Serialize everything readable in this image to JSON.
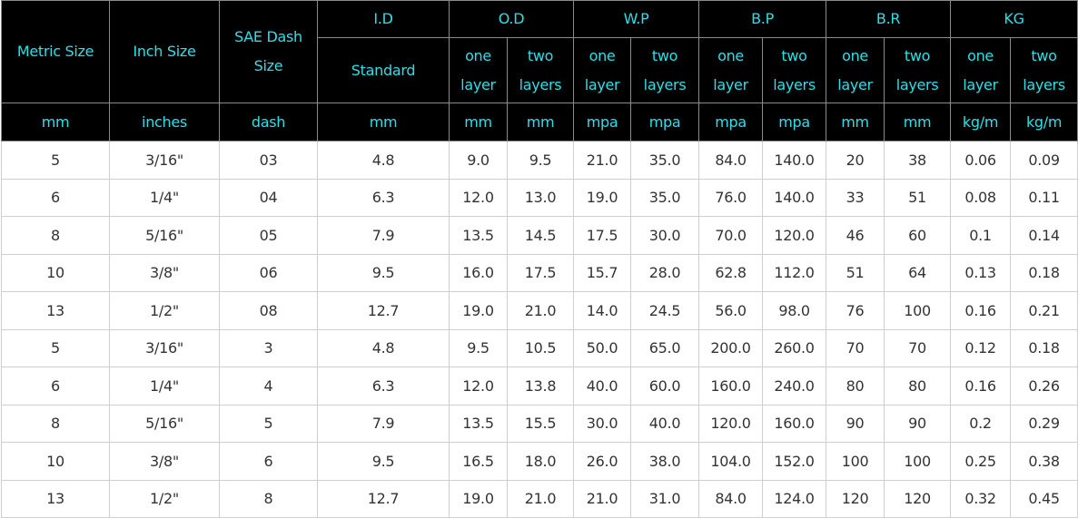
{
  "header": {
    "row1": [
      "Metric Size",
      "Inch Size",
      "SAE Dash Size",
      "I.D",
      "O.D",
      "W.P",
      "B.P",
      "B.R",
      "KG"
    ],
    "row2": [
      "Standard",
      "one layer",
      "two layers",
      "one layer",
      "two layers",
      "one layer",
      "two layers",
      "one layer",
      "two layers",
      "one layer",
      "two layers"
    ],
    "units": [
      "mm",
      "inches",
      "dash",
      "mm",
      "mm",
      "mm",
      "mpa",
      "mpa",
      "mpa",
      "mpa",
      "mm",
      "mm",
      "kg/m",
      "kg/m"
    ]
  },
  "table": {
    "rows": [
      [
        "5",
        "3/16\"",
        "03",
        "4.8",
        "9.0",
        "9.5",
        "21.0",
        "35.0",
        "84.0",
        "140.0",
        "20",
        "38",
        "0.06",
        "0.09"
      ],
      [
        "6",
        "1/4\"",
        "04",
        "6.3",
        "12.0",
        "13.0",
        "19.0",
        "35.0",
        "76.0",
        "140.0",
        "33",
        "51",
        "0.08",
        "0.11"
      ],
      [
        "8",
        "5/16\"",
        "05",
        "7.9",
        "13.5",
        "14.5",
        "17.5",
        "30.0",
        "70.0",
        "120.0",
        "46",
        "60",
        "0.1",
        "0.14"
      ],
      [
        "10",
        "3/8\"",
        "06",
        "9.5",
        "16.0",
        "17.5",
        "15.7",
        "28.0",
        "62.8",
        "112.0",
        "51",
        "64",
        "0.13",
        "0.18"
      ],
      [
        "13",
        "1/2\"",
        "08",
        "12.7",
        "19.0",
        "21.0",
        "14.0",
        "24.5",
        "56.0",
        "98.0",
        "76",
        "100",
        "0.16",
        "0.21"
      ],
      [
        "5",
        "3/16\"",
        "3",
        "4.8",
        "9.5",
        "10.5",
        "50.0",
        "65.0",
        "200.0",
        "260.0",
        "70",
        "70",
        "0.12",
        "0.18"
      ],
      [
        "6",
        "1/4\"",
        "4",
        "6.3",
        "12.0",
        "13.8",
        "40.0",
        "60.0",
        "160.0",
        "240.0",
        "80",
        "80",
        "0.16",
        "0.26"
      ],
      [
        "8",
        "5/16\"",
        "5",
        "7.9",
        "13.5",
        "15.5",
        "30.0",
        "40.0",
        "120.0",
        "160.0",
        "90",
        "90",
        "0.2",
        "0.29"
      ],
      [
        "10",
        "3/8\"",
        "6",
        "9.5",
        "16.5",
        "18.0",
        "26.0",
        "38.0",
        "104.0",
        "152.0",
        "100",
        "100",
        "0.25",
        "0.38"
      ],
      [
        "13",
        "1/2\"",
        "8",
        "12.7",
        "19.0",
        "21.0",
        "21.0",
        "31.0",
        "84.0",
        "124.0",
        "120",
        "120",
        "0.32",
        "0.45"
      ]
    ]
  }
}
